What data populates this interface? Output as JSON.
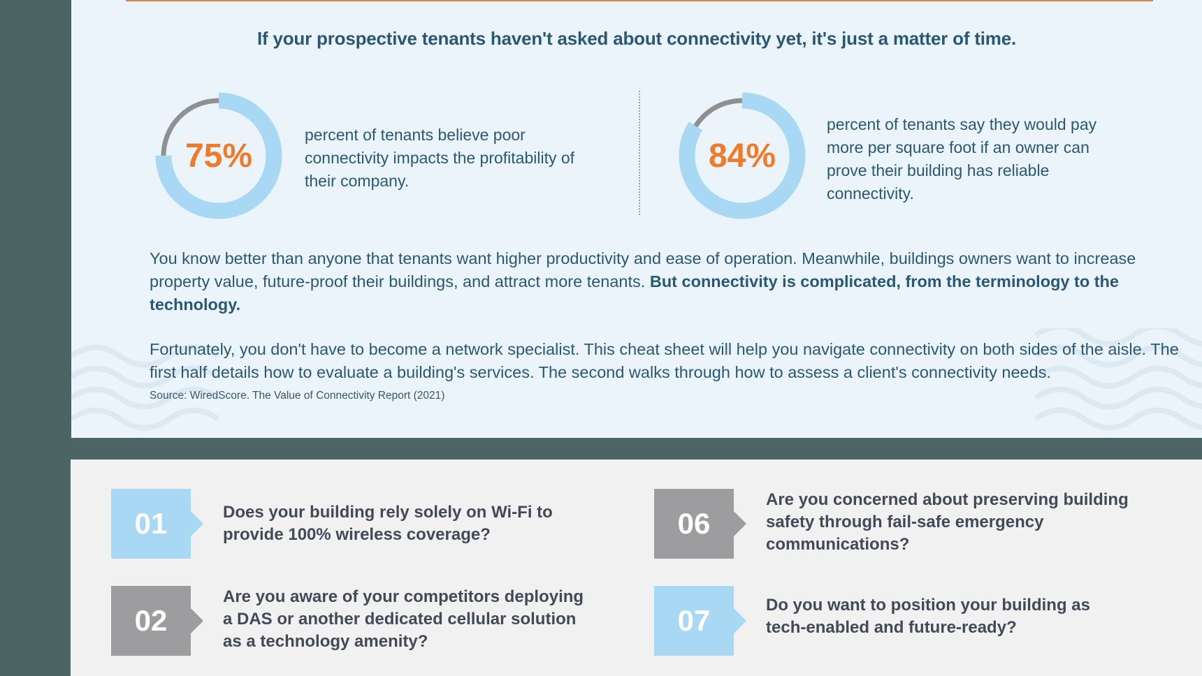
{
  "headline": "If your prospective tenants haven't asked about connectivity yet, it's just a matter of time.",
  "stats": [
    {
      "value_label": "75%",
      "value": 75,
      "text": "percent of tenants believe poor connectivity impacts the profitability of their company."
    },
    {
      "value_label": "84%",
      "value": 84,
      "text": "percent of tenants say they would pay more per square foot if an owner can prove their building has reliable connectivity."
    }
  ],
  "paragraph1": {
    "text": "You know better than anyone that tenants want higher productivity and ease of operation. Meanwhile, buildings owners want to increase property value, future-proof their buildings, and attract more tenants. ",
    "emphasis": "But connectivity is complicated, from the terminology to the technology."
  },
  "paragraph2": "Fortunately, you don't have to become a network specialist. This cheat sheet will help you navigate connectivity on both sides of the aisle. The first half details how to evaluate a building's services. The second walks through how to assess a client's connectivity needs.",
  "source": "Source: WiredScore. The Value of Connectivity Report (2021)",
  "questions": [
    {
      "num": "01",
      "text": "Does your building rely solely on Wi-Fi to provide 100% wireless coverage?"
    },
    {
      "num": "02",
      "text": "Are you aware of your competitors deploying a DAS or another dedicated cellular solution as a technology amenity?"
    },
    {
      "num": "06",
      "text": "Are you concerned about preserving building safety through fail-safe emergency communications?"
    },
    {
      "num": "07",
      "text": "Do you want to position your building as tech-enabled and future-ready?"
    }
  ],
  "colors": {
    "ring_fill": "#a8d8f3",
    "ring_track": "#8e9092",
    "accent": "#ef7a29",
    "heading": "#2a5873"
  }
}
